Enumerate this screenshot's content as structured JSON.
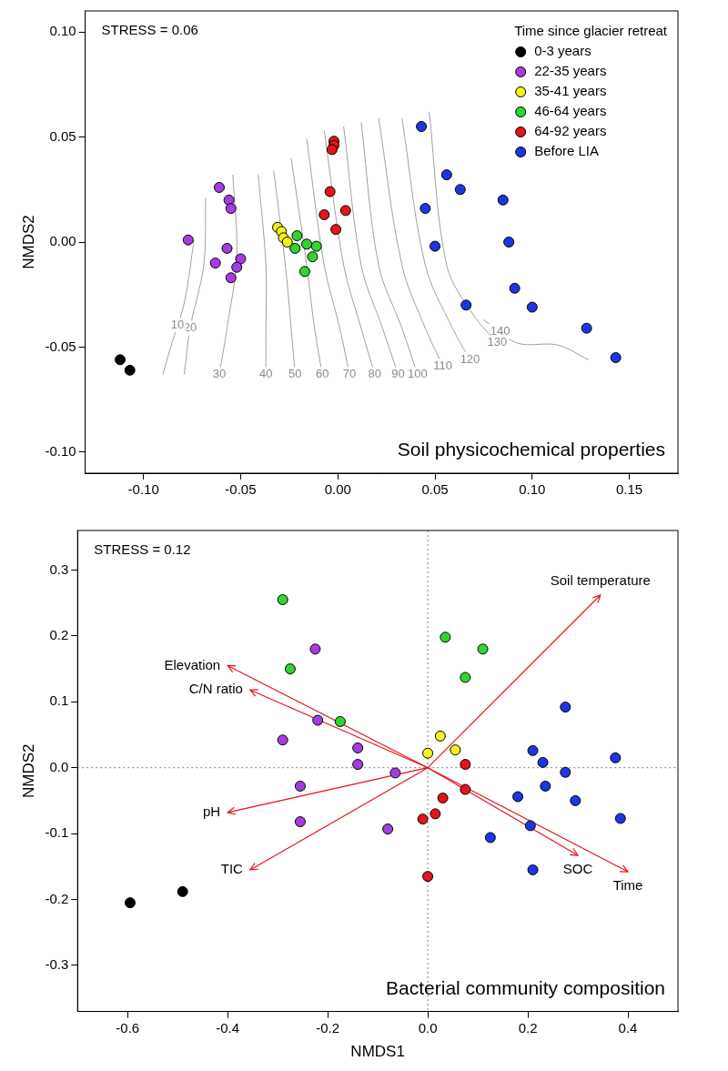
{
  "chart_data": [
    {
      "type": "scatter",
      "annotations": [
        "STRESS = 0.06",
        "Soil physicochemical properties"
      ],
      "y_label": "NMDS2",
      "legend": "upper right",
      "legend_title": "Time since glacier retreat",
      "grid": false,
      "xlim": [
        -0.13,
        0.175
      ],
      "ylim": [
        -0.11,
        0.11
      ],
      "xticks": [
        {
          "value": -0.1,
          "label": "-0.10"
        },
        {
          "value": -0.05,
          "label": "-0.05"
        },
        {
          "value": 0,
          "label": "0.00"
        },
        {
          "value": 0.05,
          "label": "0.05"
        },
        {
          "value": 0.1,
          "label": "0.10"
        },
        {
          "value": 0.15,
          "label": "0.15"
        }
      ],
      "yticks": [
        {
          "value": -0.1,
          "label": "-0.10"
        },
        {
          "value": -0.05,
          "label": "-0.05"
        },
        {
          "value": 0,
          "label": "0.00"
        },
        {
          "value": 0.05,
          "label": "0.05"
        },
        {
          "value": 0.1,
          "label": "0.10"
        }
      ],
      "series": [
        {
          "name": "0-3 years",
          "color": "#000000",
          "x": [
            -0.112,
            -0.107
          ],
          "y": [
            -0.056,
            -0.061
          ]
        },
        {
          "name": "22-35 years",
          "color": "#a43de0",
          "x": [
            -0.077,
            -0.061,
            -0.056,
            -0.055,
            -0.063,
            -0.057,
            -0.05,
            -0.052,
            -0.055
          ],
          "y": [
            0.001,
            0.026,
            0.02,
            0.016,
            -0.01,
            -0.003,
            -0.008,
            -0.012,
            -0.017
          ]
        },
        {
          "name": "35-41 years",
          "color": "#f7f01a",
          "x": [
            -0.031,
            -0.029,
            -0.028,
            -0.026
          ],
          "y": [
            0.007,
            0.005,
            0.002,
            0.0
          ]
        },
        {
          "name": "46-64 years",
          "color": "#2ed62e",
          "x": [
            -0.021,
            -0.022,
            -0.016,
            -0.011,
            -0.013,
            -0.017
          ],
          "y": [
            0.003,
            -0.003,
            -0.001,
            -0.002,
            -0.007,
            -0.014
          ]
        },
        {
          "name": "64-92 years",
          "color": "#e3141b",
          "x": [
            -0.002,
            -0.002,
            -0.003,
            -0.004,
            -0.007,
            -0.001,
            0.004
          ],
          "y": [
            0.048,
            0.046,
            0.044,
            0.024,
            0.013,
            0.006,
            0.015
          ]
        },
        {
          "name": "Before LIA",
          "color": "#1f35e0",
          "x": [
            0.043,
            0.056,
            0.063,
            0.045,
            0.05,
            0.085,
            0.088,
            0.066,
            0.091,
            0.1,
            0.128,
            0.143
          ],
          "y": [
            0.055,
            0.032,
            0.025,
            0.016,
            -0.002,
            0.02,
            0.0,
            -0.03,
            -0.022,
            -0.031,
            -0.041,
            -0.055
          ]
        }
      ],
      "contours": {
        "color": "#a0a0a0",
        "lines": [
          {
            "level": 10,
            "x": [
              -0.074,
              -0.079,
              -0.086,
              -0.09
            ],
            "y": [
              0.001,
              -0.029,
              -0.05,
              -0.063
            ]
          },
          {
            "level": 20,
            "x": [
              -0.068,
              -0.069,
              -0.076,
              -0.079
            ],
            "y": [
              0.021,
              -0.011,
              -0.041,
              -0.063
            ]
          },
          {
            "level": 30,
            "x": [
              -0.054,
              -0.052,
              -0.057,
              -0.061
            ],
            "y": [
              0.032,
              -0.007,
              -0.041,
              -0.063
            ]
          },
          {
            "level": 40,
            "x": [
              -0.041,
              -0.037,
              -0.037,
              -0.037
            ],
            "y": [
              0.032,
              -0.011,
              -0.041,
              -0.063
            ]
          },
          {
            "level": 50,
            "x": [
              -0.033,
              -0.027,
              -0.024,
              -0.022
            ],
            "y": [
              0.034,
              -0.011,
              -0.041,
              -0.063
            ]
          },
          {
            "level": 60,
            "x": [
              -0.024,
              -0.016,
              -0.012,
              -0.008
            ],
            "y": [
              0.04,
              -0.011,
              -0.041,
              -0.063
            ]
          },
          {
            "level": 70,
            "x": [
              -0.016,
              -0.007,
              0.001,
              0.006
            ],
            "y": [
              0.049,
              -0.011,
              -0.041,
              -0.063
            ]
          },
          {
            "level": 80,
            "x": [
              -0.007,
              0.003,
              0.012,
              0.019
            ],
            "y": [
              0.053,
              -0.011,
              -0.041,
              -0.063
            ]
          },
          {
            "level": 90,
            "x": [
              0.003,
              0.012,
              0.023,
              0.031
            ],
            "y": [
              0.055,
              -0.011,
              -0.041,
              -0.063
            ]
          },
          {
            "level": 100,
            "x": [
              0.012,
              0.021,
              0.033,
              0.041
            ],
            "y": [
              0.057,
              -0.011,
              -0.041,
              -0.063
            ]
          },
          {
            "level": 110,
            "x": [
              0.021,
              0.033,
              0.045,
              0.054
            ],
            "y": [
              0.059,
              -0.011,
              -0.041,
              -0.059
            ]
          },
          {
            "level": 120,
            "x": [
              0.033,
              0.045,
              0.059,
              0.068
            ],
            "y": [
              0.059,
              -0.011,
              -0.041,
              -0.056
            ]
          },
          {
            "level": 130,
            "x": [
              0.047,
              0.056,
              0.07,
              0.082
            ],
            "y": [
              0.062,
              -0.011,
              -0.035,
              -0.048
            ]
          },
          {
            "level": 140,
            "x": [
              0.075,
              0.092,
              0.113,
              0.129
            ],
            "y": [
              -0.037,
              -0.048,
              -0.049,
              -0.056
            ]
          }
        ]
      }
    },
    {
      "type": "scatter",
      "annotations": [
        "STRESS = 0.12",
        "Bacterial community composition"
      ],
      "x_label": "NMDS1",
      "y_label": "NMDS2",
      "grid": false,
      "xlim": [
        -0.7,
        0.5
      ],
      "ylim": [
        -0.37,
        0.36
      ],
      "xticks": [
        -0.6,
        -0.4,
        -0.2,
        {
          "value": 0,
          "label": "0.0"
        },
        0.2,
        0.4
      ],
      "yticks": [
        -0.3,
        -0.2,
        -0.1,
        {
          "value": 0,
          "label": "0.0"
        },
        0.1,
        0.2,
        0.3
      ],
      "series": [
        {
          "name": "0-3 years",
          "color": "#000000",
          "x": [
            -0.595,
            -0.49
          ],
          "y": [
            -0.205,
            -0.188
          ]
        },
        {
          "name": "22-35 years",
          "color": "#a43de0",
          "x": [
            -0.225,
            -0.29,
            -0.22,
            -0.14,
            -0.14,
            -0.065,
            -0.255,
            -0.255,
            -0.08
          ],
          "y": [
            0.18,
            0.042,
            0.072,
            0.03,
            0.005,
            -0.008,
            -0.028,
            -0.082,
            -0.093
          ]
        },
        {
          "name": "35-41 years",
          "color": "#f7f01a",
          "x": [
            0.0,
            0.025,
            0.055
          ],
          "y": [
            0.022,
            0.048,
            0.027
          ]
        },
        {
          "name": "46-64 years",
          "color": "#2ed62e",
          "x": [
            -0.29,
            -0.275,
            -0.175,
            0.035,
            0.11,
            0.075
          ],
          "y": [
            0.255,
            0.15,
            0.07,
            0.198,
            0.18,
            0.137
          ]
        },
        {
          "name": "64-92 years",
          "color": "#e3141b",
          "x": [
            0.075,
            0.075,
            0.03,
            0.015,
            -0.01,
            0.0
          ],
          "y": [
            0.005,
            -0.033,
            -0.046,
            -0.07,
            -0.078,
            -0.165
          ]
        },
        {
          "name": "Before LIA",
          "color": "#1f35e0",
          "x": [
            0.275,
            0.21,
            0.23,
            0.275,
            0.375,
            0.235,
            0.295,
            0.18,
            0.125,
            0.205,
            0.21,
            0.385
          ],
          "y": [
            0.092,
            0.026,
            0.008,
            -0.007,
            0.015,
            -0.028,
            -0.05,
            -0.044,
            -0.106,
            -0.088,
            -0.155,
            -0.077
          ]
        }
      ],
      "vectors": {
        "color": "#e3141b",
        "origin": [
          0,
          0
        ],
        "arrows": [
          {
            "name": "Soil temperature",
            "x": 0.345,
            "y": 0.262
          },
          {
            "name": "Elevation",
            "x": -0.4,
            "y": 0.155
          },
          {
            "name": "C/N ratio",
            "x": -0.355,
            "y": 0.118
          },
          {
            "name": "pH",
            "x": -0.4,
            "y": -0.068
          },
          {
            "name": "TIC",
            "x": -0.355,
            "y": -0.155
          },
          {
            "name": "SOC",
            "x": 0.3,
            "y": -0.133
          },
          {
            "name": "Time",
            "x": 0.4,
            "y": -0.158
          }
        ]
      }
    }
  ]
}
